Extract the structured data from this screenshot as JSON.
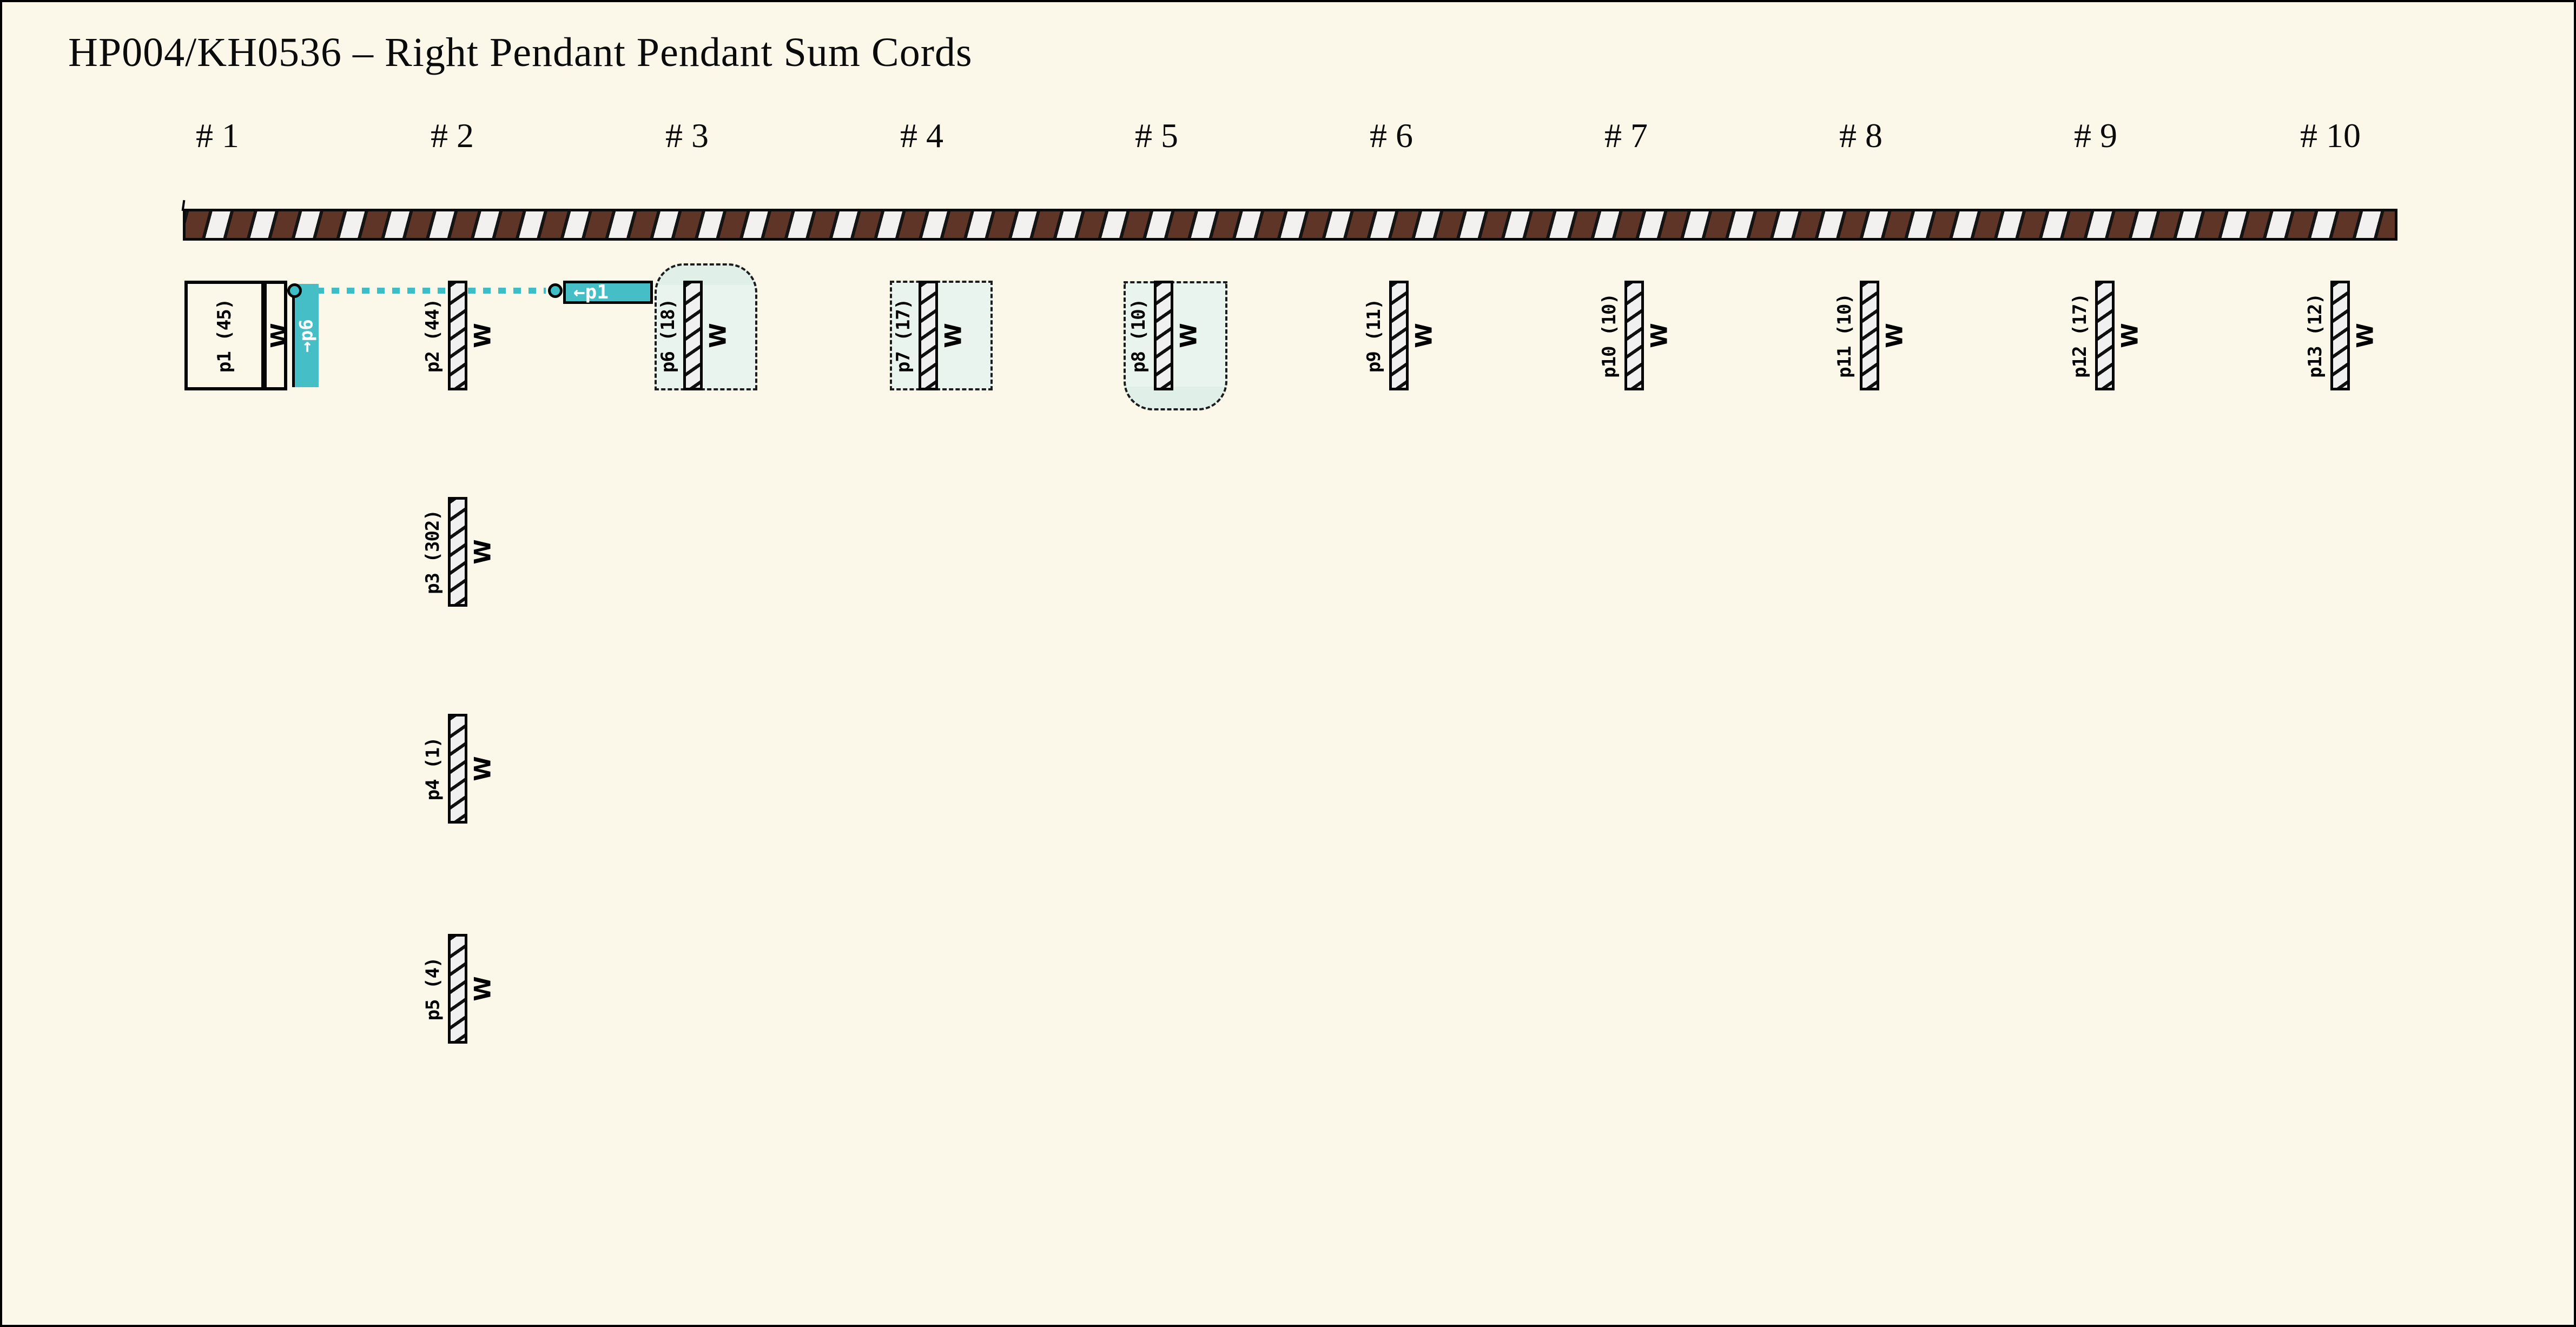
{
  "title": "HP004/KH0536 – Right Pendant Pendant Sum Cords",
  "column_headers": [
    "# 1",
    "# 2",
    "# 3",
    "# 4",
    "# 5",
    "# 6",
    "# 7",
    "# 8",
    "# 9",
    "# 10"
  ],
  "primary_cord": {
    "description": "brown and white striped primary cord"
  },
  "pendants": [
    {
      "id": "p1",
      "label": "p1 (45)",
      "value": 45,
      "knot": "W",
      "col": 1,
      "row": 0,
      "boxed": true,
      "sum_band": "→p6"
    },
    {
      "id": "p2",
      "label": "p2 (44)",
      "value": 44,
      "knot": "W",
      "col": 2,
      "row": 0
    },
    {
      "id": "p3",
      "label": "p3 (302)",
      "value": 302,
      "knot": "W",
      "col": 2,
      "row": 1
    },
    {
      "id": "p4",
      "label": "p4 (1)",
      "value": 1,
      "knot": "W",
      "col": 2,
      "row": 2
    },
    {
      "id": "p5",
      "label": "p5 (4)",
      "value": 4,
      "knot": "W",
      "col": 2,
      "row": 3
    },
    {
      "id": "p6",
      "label": "p6 (18)",
      "value": 18,
      "knot": "W",
      "col": 3,
      "row": 0,
      "region": "dome-top"
    },
    {
      "id": "p7",
      "label": "p7 (17)",
      "value": 17,
      "knot": "W",
      "col": 4,
      "row": 0,
      "region": "rect"
    },
    {
      "id": "p8",
      "label": "p8 (10)",
      "value": 10,
      "knot": "W",
      "col": 5,
      "row": 0,
      "region": "dome-bottom"
    },
    {
      "id": "p9",
      "label": "p9 (11)",
      "value": 11,
      "knot": "W",
      "col": 6,
      "row": 0
    },
    {
      "id": "p10",
      "label": "p10 (10)",
      "value": 10,
      "knot": "W",
      "col": 7,
      "row": 0
    },
    {
      "id": "p11",
      "label": "p11 (10)",
      "value": 10,
      "knot": "W",
      "col": 8,
      "row": 0
    },
    {
      "id": "p12",
      "label": "p12 (17)",
      "value": 17,
      "knot": "W",
      "col": 9,
      "row": 0
    },
    {
      "id": "p13",
      "label": "p13 (12)",
      "value": 12,
      "knot": "W",
      "col": 10,
      "row": 0
    }
  ],
  "sum_link": {
    "from": "p1",
    "to": "p6",
    "band_label": "→p6",
    "tag_label": "←p1"
  },
  "colors": {
    "background": "#fbf8e9",
    "ink": "#000000",
    "cord_brown": "#5e3527",
    "cord_white": "#f2f1ef",
    "bar_fill": "#f1f0f1",
    "teal": "#45bec6",
    "mint": "#eaf4ef",
    "mint_cap": "#e1efe9"
  }
}
